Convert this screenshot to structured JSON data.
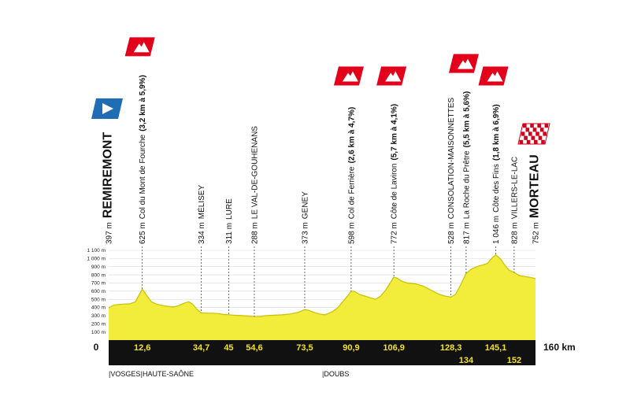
{
  "chart_data": {
    "type": "area",
    "title": "",
    "xlabel": "",
    "ylabel": "",
    "x_unit": "km",
    "xlim": [
      0,
      160
    ],
    "ylim": [
      0,
      1100
    ],
    "y_ticks": [
      {
        "value": 100,
        "label": "100 m"
      },
      {
        "value": 200,
        "label": "200 m"
      },
      {
        "value": 300,
        "label": "300 m"
      },
      {
        "value": 400,
        "label": "400 m"
      },
      {
        "value": 500,
        "label": "500 m"
      },
      {
        "value": 600,
        "label": "600 m"
      },
      {
        "value": 700,
        "label": "700 m"
      },
      {
        "value": 800,
        "label": "800 m"
      },
      {
        "value": 900,
        "label": "900 m"
      },
      {
        "value": 1000,
        "label": "1 000 m"
      },
      {
        "value": 1100,
        "label": "1 100 m"
      }
    ],
    "start_label": "0",
    "end_label": "160 km",
    "profile": [
      [
        0,
        397
      ],
      [
        2,
        430
      ],
      [
        5,
        440
      ],
      [
        8,
        445
      ],
      [
        10,
        470
      ],
      [
        11.5,
        560
      ],
      [
        12.6,
        625
      ],
      [
        14,
        560
      ],
      [
        16,
        470
      ],
      [
        18,
        440
      ],
      [
        21,
        420
      ],
      [
        24,
        405
      ],
      [
        26,
        420
      ],
      [
        28,
        450
      ],
      [
        30,
        470
      ],
      [
        31.5,
        440
      ],
      [
        33,
        380
      ],
      [
        34.7,
        334
      ],
      [
        37,
        330
      ],
      [
        39,
        330
      ],
      [
        41,
        325
      ],
      [
        43,
        315
      ],
      [
        45,
        311
      ],
      [
        47,
        305
      ],
      [
        50,
        300
      ],
      [
        52,
        295
      ],
      [
        54.6,
        288
      ],
      [
        57,
        290
      ],
      [
        59,
        300
      ],
      [
        62,
        305
      ],
      [
        65,
        310
      ],
      [
        68,
        320
      ],
      [
        71,
        340
      ],
      [
        73.5,
        373
      ],
      [
        75,
        365
      ],
      [
        77,
        340
      ],
      [
        79,
        320
      ],
      [
        81,
        310
      ],
      [
        84,
        350
      ],
      [
        86,
        400
      ],
      [
        88,
        480
      ],
      [
        90,
        560
      ],
      [
        90.9,
        598
      ],
      [
        92,
        600
      ],
      [
        94,
        560
      ],
      [
        96,
        540
      ],
      [
        98,
        520
      ],
      [
        100,
        500
      ],
      [
        102,
        540
      ],
      [
        104,
        620
      ],
      [
        105.5,
        700
      ],
      [
        106.9,
        772
      ],
      [
        108,
        760
      ],
      [
        110,
        720
      ],
      [
        112,
        700
      ],
      [
        115,
        690
      ],
      [
        118,
        660
      ],
      [
        121,
        610
      ],
      [
        124,
        560
      ],
      [
        126,
        540
      ],
      [
        128.3,
        528
      ],
      [
        130,
        560
      ],
      [
        132,
        680
      ],
      [
        134,
        817
      ],
      [
        136,
        870
      ],
      [
        138,
        900
      ],
      [
        140,
        920
      ],
      [
        142,
        940
      ],
      [
        143.5,
        1000
      ],
      [
        145.1,
        1046
      ],
      [
        147,
        990
      ],
      [
        148.5,
        920
      ],
      [
        150,
        860
      ],
      [
        152,
        828
      ],
      [
        154,
        790
      ],
      [
        156,
        780
      ],
      [
        158,
        770
      ],
      [
        160,
        752
      ]
    ],
    "waypoints": [
      {
        "km": 0,
        "altitude": 397,
        "name": "REMIREMONT",
        "label": "397 m",
        "kind": "start"
      },
      {
        "km": 12.6,
        "altitude": 625,
        "name": "Col du Mont de Fourche",
        "detail": "(3,2 km à 5,9%)",
        "label": "625 m",
        "kind": "climb",
        "km_label": "12,6"
      },
      {
        "km": 34.7,
        "altitude": 334,
        "name": "MÉLISEY",
        "label": "334 m",
        "kind": "town",
        "km_label": "34,7"
      },
      {
        "km": 45,
        "altitude": 311,
        "name": "LURE",
        "label": "311 m",
        "kind": "town",
        "km_label": "45"
      },
      {
        "km": 54.6,
        "altitude": 288,
        "name": "LE VAL-DE-GOUHENANS",
        "label": "288 m",
        "kind": "town",
        "km_label": "54,6"
      },
      {
        "km": 73.5,
        "altitude": 373,
        "name": "GENEY",
        "label": "373 m",
        "kind": "town",
        "km_label": "73,5"
      },
      {
        "km": 90.9,
        "altitude": 598,
        "name": "Col de Ferrière",
        "detail": "(2,6 km à 4,7%)",
        "label": "598 m",
        "kind": "climb",
        "km_label": "90,9"
      },
      {
        "km": 106.9,
        "altitude": 772,
        "name": "Côte de Laviron",
        "detail": "(5,7 km à 4,1%)",
        "label": "772 m",
        "kind": "climb",
        "km_label": "106,9"
      },
      {
        "km": 128.3,
        "altitude": 528,
        "name": "CONSOLATION-MAISONNETTES",
        "label": "528 m",
        "kind": "town",
        "km_label": "128,3"
      },
      {
        "km": 134,
        "altitude": 817,
        "name": "La Roche du Prêtre",
        "detail": "(5,5 km à 5,6%)",
        "label": "817 m",
        "kind": "climb",
        "km_label": "134"
      },
      {
        "km": 145.1,
        "altitude": 1046,
        "name": "Côte des Fins",
        "detail": "(1,8 km à 6,9%)",
        "label": "1 046 m",
        "kind": "climb",
        "km_label": "145,1"
      },
      {
        "km": 152,
        "altitude": 828,
        "name": "VILLERS-LE-LAC",
        "label": "828 m",
        "kind": "town",
        "km_label": "152"
      },
      {
        "km": 160,
        "altitude": 752,
        "name": "MORTEAU",
        "label": "752 m",
        "kind": "finish"
      }
    ],
    "regions": [
      {
        "km": 0,
        "name": "VOSGES"
      },
      {
        "km": 12,
        "name": "HAUTE-SAÔNE"
      },
      {
        "km": 80,
        "name": "DOUBS"
      }
    ],
    "colors": {
      "fill": "#f2ec3a",
      "outline": "#c9c000",
      "axis_band": "#111111",
      "km_text": "#f2e21f",
      "climb_flag": "#e2001a",
      "start_flag": "#1f6db5",
      "finish_check": "#d0021b"
    }
  }
}
